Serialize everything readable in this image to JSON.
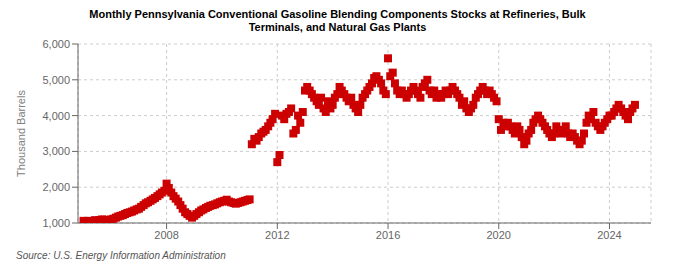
{
  "chart_data": {
    "type": "scatter",
    "title": "Monthly Pennsylvania Conventional Gasoline Blending Components Stocks at Refineries, Bulk\nTerminals, and Natural Gas Plants",
    "ylabel": "Thousand Barrels",
    "source": "Source: U.S. Energy Information Administration",
    "color": "#cc0000",
    "marker": "square",
    "grid": true,
    "xlim": [
      2004.8,
      2025.5
    ],
    "xticks": [
      2008,
      2012,
      2016,
      2020,
      2024
    ],
    "ylim": [
      1000,
      6000
    ],
    "yticks": [
      {
        "value": 1000,
        "label": "1,000"
      },
      {
        "value": 2000,
        "label": "2,000"
      },
      {
        "value": 3000,
        "label": "3,000"
      },
      {
        "value": 4000,
        "label": "4,000"
      },
      {
        "value": 5000,
        "label": "5,000"
      },
      {
        "value": 6000,
        "label": "6,000"
      }
    ],
    "x": [
      2005.0,
      2005.08,
      2005.17,
      2005.25,
      2005.33,
      2005.42,
      2005.5,
      2005.58,
      2005.67,
      2005.75,
      2005.83,
      2005.92,
      2006.0,
      2006.08,
      2006.17,
      2006.25,
      2006.33,
      2006.42,
      2006.5,
      2006.58,
      2006.67,
      2006.75,
      2006.83,
      2006.92,
      2007.0,
      2007.08,
      2007.17,
      2007.25,
      2007.33,
      2007.42,
      2007.5,
      2007.58,
      2007.67,
      2007.75,
      2007.83,
      2007.92,
      2008.0,
      2008.08,
      2008.17,
      2008.25,
      2008.33,
      2008.42,
      2008.5,
      2008.58,
      2008.67,
      2008.75,
      2008.83,
      2008.92,
      2009.0,
      2009.08,
      2009.17,
      2009.25,
      2009.33,
      2009.42,
      2009.5,
      2009.58,
      2009.67,
      2009.75,
      2009.83,
      2009.92,
      2010.0,
      2010.08,
      2010.17,
      2010.25,
      2010.33,
      2010.42,
      2010.5,
      2010.58,
      2010.67,
      2010.75,
      2010.83,
      2010.92,
      2011.0,
      2011.08,
      2011.17,
      2011.25,
      2011.33,
      2011.42,
      2011.5,
      2011.58,
      2011.67,
      2011.75,
      2011.83,
      2011.92,
      2012.0,
      2012.08,
      2012.17,
      2012.25,
      2012.33,
      2012.42,
      2012.5,
      2012.58,
      2012.67,
      2012.75,
      2012.83,
      2012.92,
      2013.0,
      2013.08,
      2013.17,
      2013.25,
      2013.33,
      2013.42,
      2013.5,
      2013.58,
      2013.67,
      2013.75,
      2013.83,
      2013.92,
      2014.0,
      2014.08,
      2014.17,
      2014.25,
      2014.33,
      2014.42,
      2014.5,
      2014.58,
      2014.67,
      2014.75,
      2014.83,
      2014.92,
      2015.0,
      2015.08,
      2015.17,
      2015.25,
      2015.33,
      2015.42,
      2015.5,
      2015.58,
      2015.67,
      2015.75,
      2015.83,
      2015.92,
      2016.0,
      2016.08,
      2016.17,
      2016.25,
      2016.33,
      2016.42,
      2016.5,
      2016.58,
      2016.67,
      2016.75,
      2016.83,
      2016.92,
      2017.0,
      2017.08,
      2017.17,
      2017.25,
      2017.33,
      2017.42,
      2017.5,
      2017.58,
      2017.67,
      2017.75,
      2017.83,
      2017.92,
      2018.0,
      2018.08,
      2018.17,
      2018.25,
      2018.33,
      2018.42,
      2018.5,
      2018.58,
      2018.67,
      2018.75,
      2018.83,
      2018.92,
      2019.0,
      2019.08,
      2019.17,
      2019.25,
      2019.33,
      2019.42,
      2019.5,
      2019.58,
      2019.67,
      2019.75,
      2019.83,
      2019.92,
      2020.0,
      2020.08,
      2020.17,
      2020.25,
      2020.33,
      2020.42,
      2020.5,
      2020.58,
      2020.67,
      2020.75,
      2020.83,
      2020.92,
      2021.0,
      2021.08,
      2021.17,
      2021.25,
      2021.33,
      2021.42,
      2021.5,
      2021.58,
      2021.67,
      2021.75,
      2021.83,
      2021.92,
      2022.0,
      2022.08,
      2022.17,
      2022.25,
      2022.33,
      2022.42,
      2022.5,
      2022.58,
      2022.67,
      2022.75,
      2022.83,
      2022.92,
      2023.0,
      2023.08,
      2023.17,
      2023.25,
      2023.33,
      2023.42,
      2023.5,
      2023.58,
      2023.67,
      2023.75,
      2023.83,
      2023.92,
      2024.0,
      2024.08,
      2024.17,
      2024.25,
      2024.33,
      2024.42,
      2024.5,
      2024.58,
      2024.67,
      2024.75,
      2024.83,
      2024.92
    ],
    "values": [
      1060,
      1020,
      1060,
      1030,
      1050,
      1080,
      1050,
      1080,
      1100,
      1090,
      1080,
      1070,
      1100,
      1120,
      1150,
      1180,
      1200,
      1220,
      1250,
      1280,
      1300,
      1320,
      1350,
      1380,
      1400,
      1450,
      1500,
      1550,
      1580,
      1620,
      1660,
      1700,
      1750,
      1800,
      1850,
      1900,
      2100,
      1980,
      1850,
      1750,
      1680,
      1600,
      1500,
      1400,
      1300,
      1250,
      1200,
      1150,
      1200,
      1250,
      1300,
      1350,
      1380,
      1420,
      1450,
      1480,
      1500,
      1520,
      1550,
      1580,
      1600,
      1620,
      1650,
      1600,
      1580,
      1560,
      1540,
      1560,
      1580,
      1600,
      1620,
      1640,
      1660,
      3200,
      3350,
      3300,
      3400,
      3500,
      3550,
      3600,
      3700,
      3800,
      3900,
      4050,
      2700,
      2900,
      4000,
      3900,
      4050,
      4100,
      4200,
      3500,
      3600,
      4000,
      3800,
      4100,
      4700,
      4800,
      4700,
      4600,
      4500,
      4400,
      4300,
      4500,
      4200,
      4100,
      4400,
      4200,
      4300,
      4500,
      4600,
      4800,
      4700,
      4600,
      4500,
      4400,
      4500,
      4300,
      4200,
      4100,
      4300,
      4500,
      4600,
      4700,
      4800,
      4900,
      5050,
      5100,
      5000,
      4900,
      4700,
      4600,
      5600,
      5100,
      5200,
      4900,
      4700,
      4600,
      4700,
      4600,
      4500,
      4600,
      4700,
      4800,
      4700,
      4600,
      4500,
      4800,
      4900,
      5000,
      4700,
      4600,
      4700,
      4500,
      4600,
      4500,
      4600,
      4700,
      4600,
      4700,
      4800,
      4700,
      4600,
      4500,
      4300,
      4400,
      4200,
      4100,
      4200,
      4300,
      4500,
      4600,
      4700,
      4800,
      4700,
      4600,
      4700,
      4600,
      4500,
      4400,
      3900,
      3600,
      3800,
      3700,
      3800,
      3700,
      3600,
      3500,
      3700,
      3600,
      3400,
      3200,
      3300,
      3500,
      3600,
      3800,
      3900,
      4000,
      3900,
      3800,
      3700,
      3600,
      3500,
      3400,
      3500,
      3700,
      3600,
      3500,
      3600,
      3700,
      3500,
      3400,
      3500,
      3400,
      3300,
      3200,
      3300,
      3500,
      3800,
      4000,
      3900,
      4100,
      3800,
      3700,
      3600,
      3700,
      3800,
      3900,
      4000,
      4000,
      4100,
      4200,
      4300,
      4200,
      4100,
      4000,
      3900,
      4100,
      4200,
      4300
    ]
  }
}
